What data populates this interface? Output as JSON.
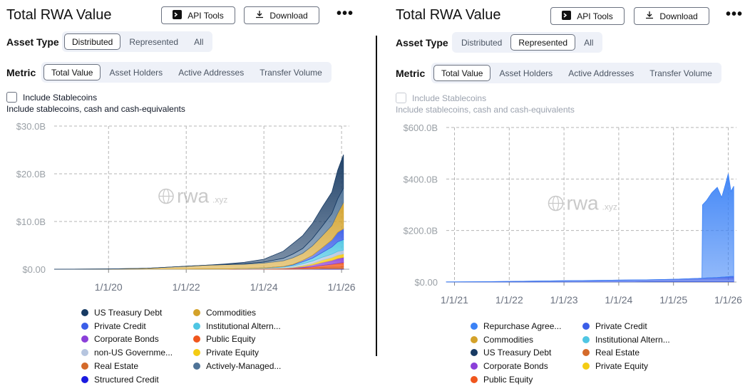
{
  "left": {
    "title": "Total RWA Value",
    "api_tools_label": "API Tools",
    "download_label": "Download",
    "more_label": "•••",
    "asset_type_label": "Asset Type",
    "asset_type_options": [
      "Distributed",
      "Represented",
      "All"
    ],
    "asset_type_selected": "Distributed",
    "metric_label": "Metric",
    "metric_options": [
      "Total Value",
      "Asset Holders",
      "Active Addresses",
      "Transfer Volume"
    ],
    "metric_selected": "Total Value",
    "stablecoins_label": "Include Stablecoins",
    "stablecoins_sub": "Include stablecoins, cash and cash-equivalents",
    "stablecoins_checked": false,
    "watermark": "rwa",
    "watermark_suffix": ".xyz",
    "legend": [
      {
        "label": "US Treasury Debt",
        "color": "#173a63"
      },
      {
        "label": "Commodities",
        "color": "#d4a22a"
      },
      {
        "label": "Private Credit",
        "color": "#3b5ee8"
      },
      {
        "label": "Institutional Altern...",
        "color": "#4fc6e3"
      },
      {
        "label": "Corporate Bonds",
        "color": "#8b3fd9"
      },
      {
        "label": "Public Equity",
        "color": "#f0561d"
      },
      {
        "label": "non-US Governme...",
        "color": "#b6c5df"
      },
      {
        "label": "Private Equity",
        "color": "#f4cc14"
      },
      {
        "label": "Real Estate",
        "color": "#d46a2a"
      },
      {
        "label": "Actively-Managed...",
        "color": "#4f7397"
      },
      {
        "label": "Structured Credit",
        "color": "#1a1ae0"
      }
    ]
  },
  "right": {
    "title": "Total RWA Value",
    "api_tools_label": "API Tools",
    "download_label": "Download",
    "more_label": "•••",
    "asset_type_label": "Asset Type",
    "asset_type_options": [
      "Distributed",
      "Represented",
      "All"
    ],
    "asset_type_selected": "Represented",
    "metric_label": "Metric",
    "metric_options": [
      "Total Value",
      "Asset Holders",
      "Active Addresses",
      "Transfer Volume"
    ],
    "metric_selected": "Total Value",
    "stablecoins_label": "Include Stablecoins",
    "stablecoins_sub": "Include stablecoins, cash and cash-equivalents",
    "stablecoins_checked": false,
    "stablecoins_disabled": true,
    "watermark": "rwa",
    "watermark_suffix": ".xyz",
    "legend": [
      {
        "label": "Repurchase Agree...",
        "color": "#3b82f6"
      },
      {
        "label": "Private Credit",
        "color": "#3b5ee8"
      },
      {
        "label": "Commodities",
        "color": "#d4a22a"
      },
      {
        "label": "Institutional Altern...",
        "color": "#4fc6e3"
      },
      {
        "label": "US Treasury Debt",
        "color": "#173a63"
      },
      {
        "label": "Real Estate",
        "color": "#d46a2a"
      },
      {
        "label": "Corporate Bonds",
        "color": "#8b3fd9"
      },
      {
        "label": "Private Equity",
        "color": "#f4cc14"
      },
      {
        "label": "Public Equity",
        "color": "#f0561d"
      }
    ]
  },
  "chart_data": [
    {
      "type": "area",
      "stacked": true,
      "title": "",
      "xlabel": "",
      "ylabel": "",
      "x_ticks": [
        "1/1/20",
        "1/1/22",
        "1/1/24",
        "1/1/26"
      ],
      "y_ticks": [
        "$0.00",
        "$10.0B",
        "$20.0B",
        "$30.0B"
      ],
      "ylim": [
        0,
        30
      ],
      "y_unit": "$B",
      "xlim": [
        2018.6,
        2026.2
      ],
      "grid": true,
      "x": [
        2018.6,
        2020.0,
        2021.0,
        2022.0,
        2022.5,
        2023.0,
        2023.5,
        2024.0,
        2024.5,
        2024.75,
        2025.0,
        2025.25,
        2025.5,
        2025.75,
        2025.9,
        2026.05
      ],
      "series": [
        {
          "name": "Structured Credit",
          "values": [
            0,
            0,
            0,
            0,
            0,
            0,
            0,
            0,
            0,
            0,
            0.05,
            0.05,
            0.1,
            0.1,
            0.1,
            0.1
          ]
        },
        {
          "name": "Real Estate",
          "values": [
            0,
            0,
            0.01,
            0.02,
            0.03,
            0.05,
            0.06,
            0.08,
            0.1,
            0.15,
            0.2,
            0.25,
            0.3,
            0.35,
            0.35,
            0.4
          ]
        },
        {
          "name": "Public Equity",
          "values": [
            0,
            0,
            0,
            0,
            0,
            0,
            0,
            0.01,
            0.03,
            0.05,
            0.1,
            0.2,
            0.4,
            0.6,
            0.8,
            0.9
          ]
        },
        {
          "name": "Corporate Bonds",
          "values": [
            0,
            0,
            0,
            0,
            0,
            0,
            0.01,
            0.02,
            0.05,
            0.1,
            0.2,
            0.4,
            0.6,
            0.8,
            1.0,
            1.1
          ]
        },
        {
          "name": "Private Equity",
          "values": [
            0,
            0,
            0,
            0,
            0,
            0,
            0.01,
            0.02,
            0.05,
            0.1,
            0.2,
            0.3,
            0.5,
            0.6,
            0.7,
            0.7
          ]
        },
        {
          "name": "non-US Government Debt",
          "values": [
            0,
            0,
            0,
            0,
            0,
            0,
            0.05,
            0.1,
            0.2,
            0.3,
            0.4,
            0.5,
            0.6,
            0.7,
            0.8,
            0.8
          ]
        },
        {
          "name": "Institutional Alternative Funds",
          "values": [
            0,
            0,
            0,
            0,
            0,
            0,
            0.02,
            0.05,
            0.1,
            0.2,
            0.4,
            0.6,
            1.0,
            1.5,
            2.0,
            2.2
          ]
        },
        {
          "name": "Private Credit",
          "values": [
            0,
            0,
            0,
            0,
            0,
            0,
            0,
            0.01,
            0.05,
            0.1,
            0.3,
            0.6,
            1.0,
            1.5,
            2.0,
            2.3
          ]
        },
        {
          "name": "Commodities",
          "values": [
            0,
            0.05,
            0.2,
            0.6,
            0.8,
            0.9,
            0.9,
            1.0,
            1.2,
            1.4,
            1.5,
            2.0,
            2.5,
            3.0,
            4.0,
            5.5
          ]
        },
        {
          "name": "Actively-Managed Strategies",
          "values": [
            0,
            0,
            0,
            0,
            0,
            0.05,
            0.1,
            0.2,
            0.5,
            0.8,
            1.0,
            1.5,
            2.0,
            2.5,
            3.0,
            3.0
          ]
        },
        {
          "name": "US Treasury Debt",
          "values": [
            0,
            0,
            0,
            0,
            0,
            0.1,
            0.3,
            0.6,
            1.5,
            2.2,
            2.7,
            3.2,
            4.0,
            4.5,
            6.0,
            7.0
          ]
        }
      ]
    },
    {
      "type": "area",
      "stacked": true,
      "title": "",
      "xlabel": "",
      "ylabel": "",
      "x_ticks": [
        "1/1/21",
        "1/1/22",
        "1/1/23",
        "1/1/24",
        "1/1/25",
        "1/1/26"
      ],
      "y_ticks": [
        "$0.00",
        "$200.0B",
        "$400.0B",
        "$600.0B"
      ],
      "ylim": [
        0,
        600
      ],
      "y_unit": "$B",
      "xlim": [
        2020.85,
        2026.15
      ],
      "grid": true,
      "x": [
        2020.85,
        2021.5,
        2022.0,
        2022.5,
        2023.0,
        2023.5,
        2024.0,
        2024.5,
        2025.0,
        2025.4,
        2025.52,
        2025.53,
        2025.6,
        2025.7,
        2025.8,
        2025.88,
        2025.95,
        2026.0,
        2026.05,
        2026.1
      ],
      "series": [
        {
          "name": "Public Equity",
          "values": [
            0,
            0,
            0,
            0,
            0,
            0,
            0,
            0,
            0,
            0,
            0,
            0,
            0,
            0,
            0,
            0,
            0,
            0,
            0,
            0
          ]
        },
        {
          "name": "Private Equity",
          "values": [
            0,
            0,
            0,
            0,
            0,
            0,
            0,
            0,
            0,
            0,
            0,
            0,
            0,
            0,
            0,
            0,
            0,
            0,
            0,
            0
          ]
        },
        {
          "name": "Corporate Bonds",
          "values": [
            0,
            0,
            0,
            0,
            0.1,
            0.2,
            0.3,
            0.4,
            0.5,
            0.6,
            0.6,
            0.6,
            0.6,
            0.6,
            0.6,
            0.6,
            0.6,
            0.6,
            0.6,
            0.6
          ]
        },
        {
          "name": "Real Estate",
          "values": [
            0,
            0,
            0,
            0,
            0,
            0,
            0.1,
            0.1,
            0.2,
            0.2,
            0.2,
            0.2,
            0.2,
            0.2,
            0.2,
            0.2,
            0.2,
            0.2,
            0.2,
            0.2
          ]
        },
        {
          "name": "US Treasury Debt",
          "values": [
            0,
            0,
            0,
            0,
            0,
            0,
            0,
            0,
            0,
            0,
            0,
            0,
            0,
            0,
            0,
            0,
            0,
            0,
            0,
            0
          ]
        },
        {
          "name": "Institutional Alternative Funds",
          "values": [
            0,
            0,
            0,
            0,
            0,
            0,
            0,
            0,
            0,
            0,
            0,
            0,
            0,
            0,
            0,
            0,
            0,
            0,
            0,
            0
          ]
        },
        {
          "name": "Commodities",
          "values": [
            0,
            0,
            0,
            0,
            0,
            0,
            0,
            0,
            0,
            0,
            0,
            0,
            0,
            0,
            0,
            0,
            0,
            0,
            0,
            0
          ]
        },
        {
          "name": "Private Credit",
          "values": [
            0.5,
            1.5,
            2.5,
            3.5,
            5,
            6,
            7,
            8,
            10,
            13,
            14,
            14,
            15,
            16,
            17,
            18,
            19,
            20,
            21,
            21
          ]
        },
        {
          "name": "Repurchase Agreements",
          "values": [
            0,
            0,
            0,
            0,
            0,
            0,
            0,
            0,
            0,
            0,
            0,
            285,
            300,
            330,
            350,
            310,
            360,
            400,
            330,
            350
          ]
        }
      ]
    }
  ]
}
